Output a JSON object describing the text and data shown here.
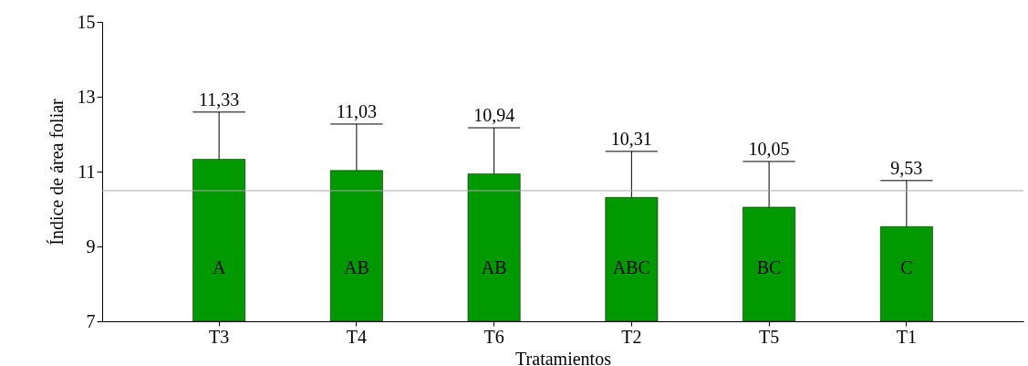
{
  "chart_data": {
    "type": "bar",
    "xlabel": "Tratamientos",
    "ylabel": "Índice de área foliar",
    "categories": [
      "T3",
      "T4",
      "T6",
      "T2",
      "T5",
      "T1"
    ],
    "values": [
      11.33,
      11.03,
      10.94,
      10.31,
      10.05,
      9.53
    ],
    "color": "#009900",
    "errors": [
      [
        11.33,
        12.59
      ],
      [
        11.03,
        12.27
      ],
      [
        10.94,
        12.17
      ],
      [
        10.31,
        11.54
      ],
      [
        10.05,
        11.27
      ],
      [
        9.53,
        10.76
      ]
    ],
    "value_labels": [
      "11,33",
      "11,03",
      "10,94",
      "10,31",
      "10,05",
      "9,53"
    ],
    "ylim": [
      7,
      15
    ],
    "yticks": [
      7,
      9,
      11,
      13,
      15
    ],
    "grid": false,
    "ref_lines": [
      {
        "axis": "y",
        "value": 10.49,
        "color": "#aaaaaa"
      }
    ],
    "annotations": [
      "A",
      "AB",
      "AB",
      "ABC",
      "BC",
      "C"
    ]
  }
}
